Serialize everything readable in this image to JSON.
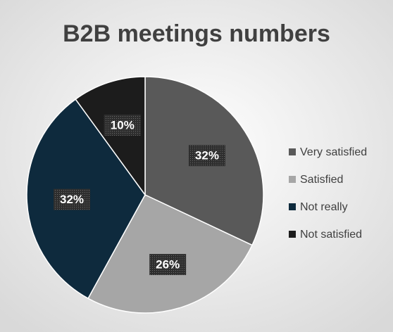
{
  "chart_data": {
    "type": "pie",
    "title": "B2B meetings numbers",
    "categories": [
      "Very satisfied",
      "Satisfied",
      "Not really",
      "Not satisfied"
    ],
    "values": [
      32,
      26,
      32,
      10
    ],
    "value_labels": [
      "32%",
      "26%",
      "32%",
      "10%"
    ],
    "colors": [
      "#595959",
      "#a6a6a6",
      "#0e2a3d",
      "#1c1c1c"
    ],
    "legend": "right"
  }
}
